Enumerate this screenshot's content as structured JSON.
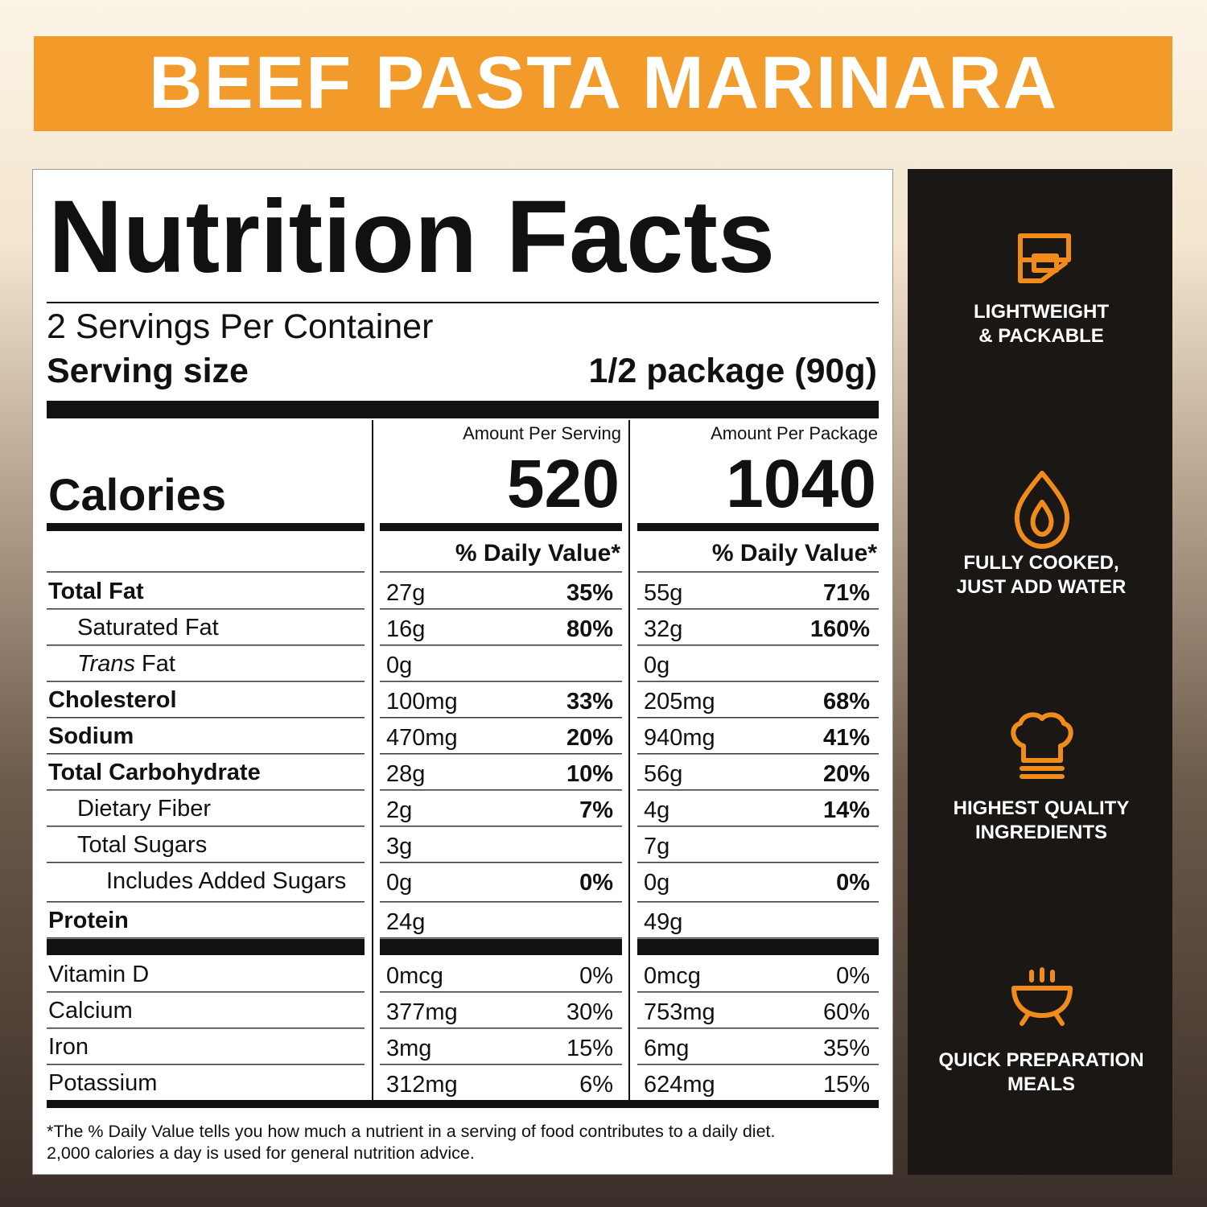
{
  "banner": {
    "title": "BEEF PASTA MARINARA"
  },
  "label": {
    "title": "Nutrition Facts",
    "servings": "2 Servings Per Container",
    "serving_size_label": "Serving size",
    "serving_size": "1/2 package (90g)",
    "calories_label": "Calories",
    "columns": [
      {
        "header": "Amount Per Serving",
        "calories": "520",
        "dv_header": "% Daily Value*"
      },
      {
        "header": "Amount Per Package",
        "calories": "1040",
        "dv_header": "% Daily Value*"
      }
    ],
    "nutrients": [
      {
        "name": "Total Fat",
        "bold": true,
        "level": 0,
        "values": [
          {
            "amount": "27g",
            "dv": "35%"
          },
          {
            "amount": "55g",
            "dv": "71%"
          }
        ]
      },
      {
        "name": "Saturated Fat",
        "level": 1,
        "values": [
          {
            "amount": "16g",
            "dv": "80%"
          },
          {
            "amount": "32g",
            "dv": "160%"
          }
        ]
      },
      {
        "prefix_italic": "Trans",
        "name": "Fat",
        "level": 1,
        "values": [
          {
            "amount": "0g"
          },
          {
            "amount": "0g"
          }
        ]
      },
      {
        "name": "Cholesterol",
        "bold": true,
        "level": 0,
        "values": [
          {
            "amount": "100mg",
            "dv": "33%"
          },
          {
            "amount": "205mg",
            "dv": "68%"
          }
        ]
      },
      {
        "name": "Sodium",
        "bold": true,
        "level": 0,
        "values": [
          {
            "amount": "470mg",
            "dv": "20%"
          },
          {
            "amount": "940mg",
            "dv": "41%"
          }
        ]
      },
      {
        "name": "Total Carbohydrate",
        "bold": true,
        "level": 0,
        "values": [
          {
            "amount": "28g",
            "dv": "10%"
          },
          {
            "amount": "56g",
            "dv": "20%"
          }
        ]
      },
      {
        "name": "Dietary Fiber",
        "level": 1,
        "values": [
          {
            "amount": "2g",
            "dv": "7%"
          },
          {
            "amount": "4g",
            "dv": "14%"
          }
        ]
      },
      {
        "name": "Total Sugars",
        "level": 1,
        "values": [
          {
            "amount": "3g"
          },
          {
            "amount": "7g"
          }
        ]
      },
      {
        "name": "Includes Added Sugars",
        "level": 2,
        "values": [
          {
            "amount": "0g",
            "dv": "0%"
          },
          {
            "amount": "0g",
            "dv": "0%"
          }
        ]
      },
      {
        "name": "Protein",
        "bold": true,
        "level": 0,
        "values": [
          {
            "amount": "24g"
          },
          {
            "amount": "49g"
          }
        ]
      }
    ],
    "vitamins": [
      {
        "name": "Vitamin D",
        "values": [
          {
            "amount": "0mcg",
            "dv": "0%"
          },
          {
            "amount": "0mcg",
            "dv": "0%"
          }
        ]
      },
      {
        "name": "Calcium",
        "values": [
          {
            "amount": "377mg",
            "dv": "30%"
          },
          {
            "amount": "753mg",
            "dv": "60%"
          }
        ]
      },
      {
        "name": "Iron",
        "values": [
          {
            "amount": "3mg",
            "dv": "15%"
          },
          {
            "amount": "6mg",
            "dv": "35%"
          }
        ]
      },
      {
        "name": "Potassium",
        "values": [
          {
            "amount": "312mg",
            "dv": "6%"
          },
          {
            "amount": "624mg",
            "dv": "15%"
          }
        ]
      }
    ],
    "footnote": [
      "*The % Daily Value tells you how much a nutrient in a serving of food contributes to a daily diet.",
      "2,000 calories a day is used for general nutrition advice."
    ]
  },
  "features": [
    {
      "lines": [
        "LIGHTWEIGHT",
        "& PACKABLE"
      ]
    },
    {
      "lines": [
        "FULLY COOKED,",
        "JUST ADD WATER"
      ]
    },
    {
      "lines": [
        "HIGHEST QUALITY",
        "INGREDIENTS"
      ]
    },
    {
      "lines": [
        "QUICK PREPARATION",
        "MEALS"
      ]
    }
  ]
}
